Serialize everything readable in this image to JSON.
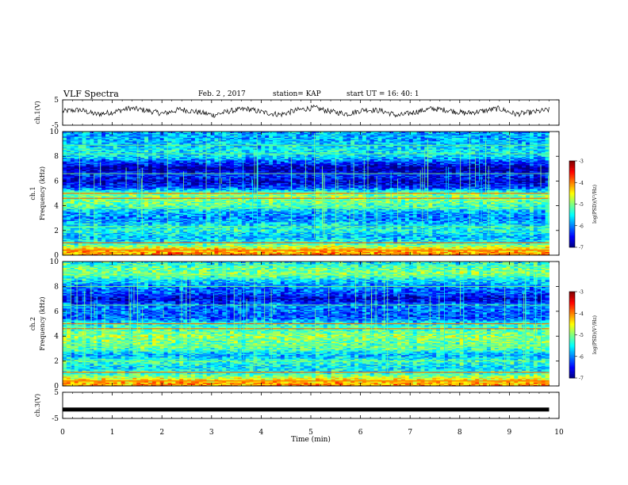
{
  "header": {
    "title": "VLF Spectra",
    "date": "Feb. 2 , 2017",
    "station": "station= KAP",
    "start_ut": "start  UT =   16: 40: 1"
  },
  "chart_data": [
    {
      "type": "line",
      "panel": "ch1-waveform",
      "ylabel": "ch.1(V)",
      "ylim": [
        -5,
        5
      ],
      "yticks": [
        "5",
        "-5"
      ],
      "x_range": [
        0,
        10
      ],
      "data_extent_min": 9.8,
      "series": [
        {
          "mean": 0.2,
          "amplitude": 2.6,
          "y_samples": [
            0.5,
            1.2,
            -0.8,
            0.2,
            1.9,
            0.9,
            -0.5,
            1.4,
            0.3,
            -1.1,
            0.7,
            1.6,
            0.0,
            -0.9,
            1.1,
            2.1,
            0.4,
            -0.6,
            1.3,
            0.8,
            -1.4,
            0.2,
            1.7,
            1.0,
            -0.3,
            0.6,
            1.8,
            -0.7,
            0.1,
            1.2
          ]
        }
      ]
    },
    {
      "type": "heatmap",
      "panel": "ch1-spectrogram",
      "ylabel": "ch.1\nFrequency (kHz)",
      "ylim": [
        0,
        10
      ],
      "yticks": [
        "0",
        "2",
        "4",
        "6",
        "8",
        "10"
      ],
      "x_range": [
        0,
        10
      ],
      "data_extent_min": 9.8,
      "value_range": [
        -7,
        -3
      ],
      "colorbar": {
        "label": "log(PSD)(V²/Hz)",
        "ticks": [
          "-3",
          "-4",
          "-5",
          "-6",
          "-7"
        ],
        "placement": "right"
      },
      "intensity_profile_khz": [
        {
          "f": 0.0,
          "v": -4.0
        },
        {
          "f": 0.5,
          "v": -4.3
        },
        {
          "f": 1.0,
          "v": -5.4
        },
        {
          "f": 1.5,
          "v": -5.8
        },
        {
          "f": 2.0,
          "v": -5.4
        },
        {
          "f": 2.5,
          "v": -5.6
        },
        {
          "f": 3.0,
          "v": -6.0
        },
        {
          "f": 3.5,
          "v": -5.8
        },
        {
          "f": 4.0,
          "v": -5.2
        },
        {
          "f": 4.5,
          "v": -5.0
        },
        {
          "f": 5.0,
          "v": -5.0
        },
        {
          "f": 5.5,
          "v": -6.3
        },
        {
          "f": 6.0,
          "v": -6.7
        },
        {
          "f": 6.5,
          "v": -6.3
        },
        {
          "f": 7.0,
          "v": -6.9
        },
        {
          "f": 7.5,
          "v": -6.3
        },
        {
          "f": 8.0,
          "v": -5.6
        },
        {
          "f": 8.5,
          "v": -5.5
        },
        {
          "f": 9.0,
          "v": -5.7
        },
        {
          "f": 9.5,
          "v": -5.8
        },
        {
          "f": 10.0,
          "v": -5.8
        }
      ],
      "narrowband_lines_khz": [
        0.4,
        1.0,
        2.3,
        3.8,
        4.6,
        5.0,
        6.6,
        8.2,
        8.9
      ]
    },
    {
      "type": "heatmap",
      "panel": "ch2-spectrogram",
      "ylabel": "ch.2\nFrequency (kHz)",
      "ylim": [
        0,
        10
      ],
      "yticks": [
        "0",
        "2",
        "4",
        "6",
        "8",
        "10"
      ],
      "x_range": [
        0,
        10
      ],
      "data_extent_min": 9.8,
      "value_range": [
        -7,
        -3
      ],
      "colorbar": {
        "label": "log(PSD)(V²/Hz)",
        "ticks": [
          "-3",
          "-4",
          "-5",
          "-6",
          "-7"
        ],
        "placement": "right"
      },
      "intensity_profile_khz": [
        {
          "f": 0.0,
          "v": -4.0
        },
        {
          "f": 0.5,
          "v": -4.4
        },
        {
          "f": 1.0,
          "v": -5.3
        },
        {
          "f": 1.5,
          "v": -5.6
        },
        {
          "f": 2.0,
          "v": -5.3
        },
        {
          "f": 2.5,
          "v": -5.8
        },
        {
          "f": 3.0,
          "v": -5.2
        },
        {
          "f": 3.5,
          "v": -5.1
        },
        {
          "f": 4.0,
          "v": -4.9
        },
        {
          "f": 4.5,
          "v": -5.2
        },
        {
          "f": 5.0,
          "v": -5.4
        },
        {
          "f": 5.5,
          "v": -6.2
        },
        {
          "f": 6.0,
          "v": -6.1
        },
        {
          "f": 6.5,
          "v": -6.0
        },
        {
          "f": 7.0,
          "v": -6.7
        },
        {
          "f": 7.5,
          "v": -6.2
        },
        {
          "f": 8.0,
          "v": -6.0
        },
        {
          "f": 8.5,
          "v": -5.6
        },
        {
          "f": 9.0,
          "v": -5.0
        },
        {
          "f": 9.5,
          "v": -5.1
        },
        {
          "f": 10.0,
          "v": -5.5
        }
      ],
      "narrowband_lines_khz": [
        0.4,
        1.1,
        2.0,
        3.2,
        4.6,
        5.0,
        6.5,
        8.0,
        8.9
      ]
    },
    {
      "type": "line",
      "panel": "ch3-waveform",
      "ylabel": "ch.3(V)",
      "ylim": [
        -5,
        5
      ],
      "yticks": [
        "5",
        "-5"
      ],
      "x_range": [
        0,
        10
      ],
      "data_extent_min": 9.8,
      "series": [
        {
          "constant": -1.6
        }
      ]
    }
  ],
  "xaxis": {
    "label": "Time  (min)",
    "ticks": [
      "0",
      "1",
      "2",
      "3",
      "4",
      "5",
      "6",
      "7",
      "8",
      "9",
      "10"
    ]
  },
  "colors": {
    "colormap": [
      "#000080",
      "#0000ff",
      "#0080ff",
      "#00ffff",
      "#80ff80",
      "#ffff00",
      "#ff8000",
      "#ff0000",
      "#800000"
    ]
  }
}
